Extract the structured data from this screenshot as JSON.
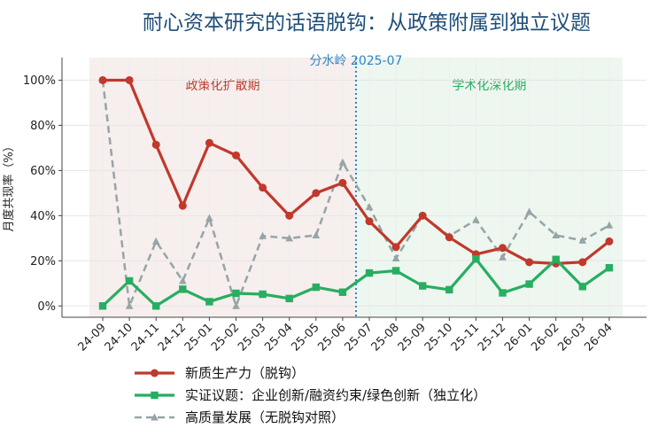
{
  "chart_data": {
    "type": "line",
    "title": "耐心资本研究的话语脱钩：从政策附属到独立议题",
    "ylabel": "月度共现率（%）",
    "xlabel": "",
    "ylim": [
      -5,
      110
    ],
    "yticks": [
      0,
      20,
      40,
      60,
      80,
      100
    ],
    "ytick_labels": [
      "0%",
      "20%",
      "40%",
      "60%",
      "80%",
      "100%"
    ],
    "categories": [
      "24-09",
      "24-10",
      "24-11",
      "24-12",
      "25-01",
      "25-02",
      "25-03",
      "25-04",
      "25-05",
      "25-06",
      "25-07",
      "25-08",
      "25-09",
      "25-10",
      "25-11",
      "25-12",
      "26-01",
      "26-02",
      "26-03",
      "26-04"
    ],
    "grid": true,
    "legend_position": "bottom",
    "divider": {
      "label": "分水岭 2025-07",
      "x_between": [
        "25-06",
        "25-07"
      ],
      "color": "#2e86c1"
    },
    "regions": [
      {
        "label": "政策化扩散期",
        "from": "24-09",
        "to": "25-06",
        "color": "#c0392b",
        "fill": "#f7eeee"
      },
      {
        "label": "学术化深化期",
        "from": "25-07",
        "to": "26-04",
        "color": "#27ae60",
        "fill": "#eef6f0"
      }
    ],
    "series": [
      {
        "name": "新质生产力（脱钩）",
        "color": "#c0392b",
        "marker": "circle",
        "dash": "solid",
        "values": [
          100,
          100,
          71.4,
          44.4,
          72.2,
          66.7,
          52.4,
          40.0,
          50.0,
          54.5,
          37.5,
          26.1,
          40.0,
          30.4,
          22.9,
          25.7,
          19.4,
          18.8,
          19.4,
          28.6
        ]
      },
      {
        "name": "实证议题：企业创新/融资约束/绿色创新（独立化）",
        "color": "#27ae60",
        "marker": "square",
        "dash": "solid",
        "values": [
          0,
          11.1,
          0,
          7.4,
          1.9,
          5.6,
          5.2,
          3.3,
          8.3,
          6.1,
          14.6,
          15.6,
          8.9,
          7.2,
          20.8,
          5.8,
          9.7,
          20.6,
          8.6,
          16.9
        ]
      },
      {
        "name": "高质量发展（无脱钩对照）",
        "color": "#95a5a6",
        "marker": "triangle",
        "dash": "dashed",
        "values": [
          100,
          0,
          28.6,
          11.1,
          38.9,
          0,
          31.0,
          30.0,
          31.3,
          63.6,
          43.8,
          21.1,
          40.0,
          31.0,
          38.1,
          21.6,
          41.7,
          31.3,
          29.0,
          35.7
        ]
      }
    ]
  }
}
